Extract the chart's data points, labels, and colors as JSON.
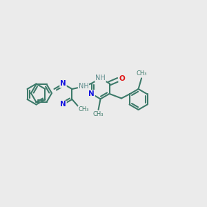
{
  "bg_color": "#ebebeb",
  "bond_color": "#3d7a6a",
  "n_color": "#1414e0",
  "o_color": "#e01414",
  "nh_color": "#5a8a8a",
  "line_width": 1.5,
  "font_size_atom": 7.5,
  "fig_width": 3.0,
  "fig_height": 3.0,
  "xlim": [
    0,
    10
  ],
  "ylim": [
    0,
    10
  ]
}
